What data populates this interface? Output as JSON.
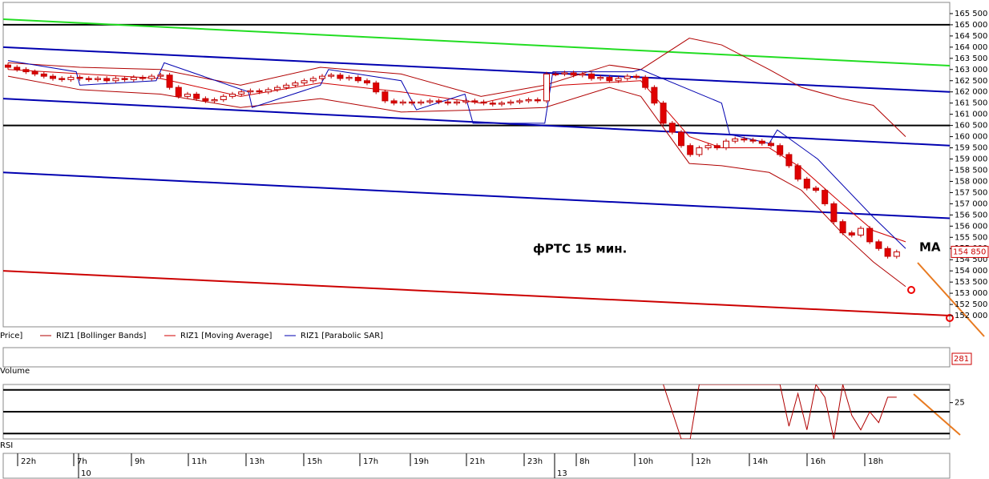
{
  "chart_data": {
    "type": "candlestick",
    "title": "фРТС  15 мин.",
    "annotation": "MA",
    "last_price_label": "154 850",
    "legend_price": "Price]",
    "volume_label": "Volume",
    "volume_last": "281",
    "rsi_label": "RSI",
    "x_labels": [
      "22h",
      "7h",
      "9h",
      "11h",
      "13h",
      "15h",
      "17h",
      "19h",
      "21h",
      "23h",
      "8h",
      "10h",
      "12h",
      "14h",
      "16h",
      "18h"
    ],
    "day_labels": [
      "10",
      "13"
    ],
    "ylim": [
      151500,
      166000
    ],
    "yticks": [
      {
        "value": 152000,
        "label": "152 000"
      },
      {
        "value": 152500,
        "label": "152 500"
      },
      {
        "value": 153000,
        "label": "153 000"
      },
      {
        "value": 153500,
        "label": "153 500"
      },
      {
        "value": 154000,
        "label": "154 000"
      },
      {
        "value": 154500,
        "label": "154 500"
      },
      {
        "value": 155000,
        "label": "155 000"
      },
      {
        "value": 155500,
        "label": "155 500"
      },
      {
        "value": 156000,
        "label": "156 000"
      },
      {
        "value": 156500,
        "label": "156 500"
      },
      {
        "value": 157000,
        "label": "157 000"
      },
      {
        "value": 157500,
        "label": "157 500"
      },
      {
        "value": 158000,
        "label": "158 000"
      },
      {
        "value": 158500,
        "label": "158 500"
      },
      {
        "value": 159000,
        "label": "159 000"
      },
      {
        "value": 159500,
        "label": "159 500"
      },
      {
        "value": 160000,
        "label": "160 000"
      },
      {
        "value": 160500,
        "label": "160 500"
      },
      {
        "value": 161000,
        "label": "161 000"
      },
      {
        "value": 161500,
        "label": "161 500"
      },
      {
        "value": 162000,
        "label": "162 000"
      },
      {
        "value": 162500,
        "label": "162 500"
      },
      {
        "value": 163000,
        "label": "163 000"
      },
      {
        "value": 163500,
        "label": "163 500"
      },
      {
        "value": 164000,
        "label": "164 000"
      },
      {
        "value": 164500,
        "label": "164 500"
      },
      {
        "value": 165000,
        "label": "165 000"
      },
      {
        "value": 165500,
        "label": "165 500"
      }
    ],
    "up_color": "#ffffff",
    "down_color": "#e00000",
    "wick_color": "#c00000",
    "open": [
      163200,
      163100,
      163000,
      162900,
      162800,
      162700,
      162600,
      162550,
      162650,
      162600,
      162550,
      162600,
      162500,
      162600,
      162550,
      162650,
      162600,
      162700,
      162750,
      162200,
      161800,
      161900,
      161700,
      161600,
      161650,
      161800,
      161900,
      162000,
      162050,
      162000,
      162100,
      162200,
      162300,
      162400,
      162500,
      162600,
      162700,
      162750,
      162600,
      162650,
      162500,
      162400,
      162000,
      161600,
      161500,
      161550,
      161500,
      161550,
      161600,
      161550,
      161500,
      161550,
      161600,
      161550,
      161500,
      161450,
      161500,
      161550,
      161600,
      161650,
      161600,
      162800,
      162800,
      162850,
      162750,
      162800,
      162600,
      162650,
      162500,
      162600,
      162700,
      162650,
      162200,
      161500,
      160600,
      160200,
      159600,
      159200,
      159500,
      159600,
      159500,
      159800,
      159900,
      159850,
      159800,
      159700,
      159600,
      159200,
      158700,
      158100,
      157700,
      157600,
      157000,
      156200,
      155700,
      155600,
      155900,
      155300,
      155000,
      154650
    ],
    "high": [
      163300,
      163200,
      163100,
      163000,
      162900,
      162800,
      162700,
      162750,
      162750,
      162700,
      162700,
      162700,
      162700,
      162700,
      162750,
      162750,
      162800,
      162850,
      162850,
      162300,
      162000,
      162000,
      161800,
      161750,
      161900,
      162000,
      162100,
      162150,
      162150,
      162200,
      162300,
      162400,
      162500,
      162600,
      162700,
      162800,
      162850,
      162850,
      162750,
      162750,
      162600,
      162500,
      162100,
      161700,
      161650,
      161650,
      161650,
      161700,
      161700,
      161650,
      161650,
      161700,
      161700,
      161650,
      161600,
      161600,
      161650,
      161700,
      161750,
      161750,
      162900,
      162900,
      162950,
      162950,
      162900,
      162900,
      162750,
      162750,
      162700,
      162800,
      162800,
      162750,
      162300,
      161600,
      160700,
      160300,
      159700,
      159600,
      159700,
      159700,
      159900,
      160000,
      160000,
      159950,
      159900,
      159800,
      159700,
      159300,
      158800,
      158200,
      157800,
      157700,
      157100,
      156300,
      155800,
      156000,
      156000,
      155400,
      155100,
      154950
    ],
    "low": [
      163000,
      162900,
      162800,
      162700,
      162600,
      162500,
      162450,
      162450,
      162500,
      162450,
      162450,
      162400,
      162400,
      162450,
      162450,
      162500,
      162500,
      162600,
      162100,
      161700,
      161700,
      161600,
      161500,
      161500,
      161550,
      161700,
      161800,
      161900,
      161900,
      161900,
      162000,
      162100,
      162200,
      162300,
      162400,
      162500,
      162600,
      162500,
      162500,
      162400,
      162300,
      161900,
      161500,
      161400,
      161400,
      161400,
      161400,
      161450,
      161450,
      161400,
      161400,
      161450,
      161450,
      161400,
      161350,
      161350,
      161400,
      161450,
      161500,
      161500,
      161500,
      162700,
      162700,
      162650,
      162650,
      162500,
      162500,
      162400,
      162400,
      162500,
      162550,
      162100,
      161400,
      160500,
      160100,
      159500,
      159100,
      159100,
      159400,
      159400,
      159400,
      159700,
      159750,
      159700,
      159600,
      159500,
      159100,
      158600,
      158000,
      157600,
      157500,
      156900,
      156100,
      155600,
      155500,
      155500,
      155200,
      154900,
      154550,
      154550
    ],
    "close": [
      163100,
      163000,
      162900,
      162800,
      162700,
      162600,
      162550,
      162650,
      162600,
      162550,
      162600,
      162500,
      162600,
      162550,
      162650,
      162600,
      162700,
      162750,
      162200,
      161800,
      161900,
      161700,
      161600,
      161650,
      161800,
      161900,
      162000,
      162050,
      162000,
      162100,
      162200,
      162300,
      162400,
      162500,
      162600,
      162700,
      162750,
      162600,
      162650,
      162500,
      162400,
      162000,
      161600,
      161500,
      161550,
      161500,
      161550,
      161600,
      161550,
      161500,
      161550,
      161600,
      161550,
      161500,
      161450,
      161500,
      161550,
      161600,
      161650,
      161600,
      162800,
      162800,
      162850,
      162750,
      162800,
      162600,
      162650,
      162500,
      162600,
      162700,
      162650,
      162200,
      161500,
      160600,
      160200,
      159600,
      159200,
      159500,
      159600,
      159500,
      159800,
      159900,
      159850,
      159800,
      159700,
      159600,
      159200,
      158700,
      158100,
      157700,
      157600,
      157000,
      156200,
      155700,
      155600,
      155900,
      155300,
      155000,
      154650,
      154850
    ],
    "levels": [
      {
        "values": [
          165000,
          165000
        ],
        "color": "#000000"
      },
      {
        "values": [
          160500,
          160500
        ],
        "color": "#000000"
      },
      {
        "values": [
          165250,
          163170
        ],
        "color": "#22dd22"
      },
      {
        "values": [
          164000,
          162000
        ],
        "color": "#0000b0"
      },
      {
        "values": [
          161700,
          159600
        ],
        "color": "#0000b0"
      },
      {
        "values": [
          158400,
          156350
        ],
        "color": "#0000b0"
      },
      {
        "values": [
          154000,
          152000
        ],
        "color": "#cc0000"
      }
    ],
    "overlays": [
      {
        "name": "RIZ1 [Bollinger Bands]",
        "color": "#b00000",
        "x": [
          0,
          8,
          17,
          25.9,
          34.8,
          43.8,
          52.7,
          59.8,
          67,
          70.5,
          75.9,
          79.5,
          84.8,
          88.4,
          92.9,
          96.4,
          100
        ],
        "upper": [
          163300,
          163100,
          163000,
          162300,
          163100,
          162800,
          161800,
          162300,
          163200,
          163000,
          164400,
          164100,
          163000,
          162200,
          161700,
          161400,
          160000
        ],
        "lower": [
          162700,
          162100,
          161900,
          161300,
          161700,
          161100,
          161200,
          161300,
          162200,
          161800,
          158800,
          158700,
          158400,
          157600,
          155700,
          154400,
          153300
        ]
      },
      {
        "name": "RIZ1 [Moving Average]",
        "color": "#d00000",
        "x": [
          0,
          17,
          25.9,
          34.8,
          43.8,
          52.7,
          61.6,
          70.5,
          75.9,
          79.5,
          84.8,
          88.4,
          92.9,
          96.4,
          100
        ],
        "values": [
          163000,
          162600,
          161800,
          162400,
          162000,
          161500,
          162300,
          162500,
          160000,
          159500,
          159500,
          158600,
          157000,
          155800,
          155300
        ]
      },
      {
        "name": "RIZ1 [Parabolic SAR]",
        "color": "#0000b0",
        "x": [
          0,
          7.6,
          8,
          16.5,
          17.4,
          26.8,
          27.2,
          34.8,
          35.7,
          43.8,
          45.5,
          50.9,
          51.8,
          59.8,
          60.7,
          69.6,
          70.5,
          79.5,
          80.4,
          84.8,
          85.7,
          90.2,
          96.4,
          100
        ],
        "values": [
          163400,
          162900,
          162300,
          162500,
          163300,
          162000,
          161300,
          162300,
          163000,
          162500,
          161200,
          161900,
          160600,
          160600,
          162900,
          162900,
          163000,
          161500,
          160100,
          159700,
          160300,
          159000,
          156400,
          155000
        ]
      }
    ],
    "rsi": {
      "color": "#b00000",
      "ylim": [
        5,
        35
      ],
      "yticks": [
        25
      ],
      "levels": [
        32,
        20,
        8
      ],
      "x": [
        73,
        74,
        75,
        76,
        77,
        86,
        87,
        88,
        89,
        90,
        91,
        92,
        93,
        94,
        95,
        96,
        97,
        98,
        99
      ],
      "values": [
        35,
        20,
        5,
        5,
        35,
        35,
        12,
        30,
        10,
        35,
        28,
        5,
        35,
        18,
        10,
        20,
        14,
        28,
        28
      ]
    }
  }
}
